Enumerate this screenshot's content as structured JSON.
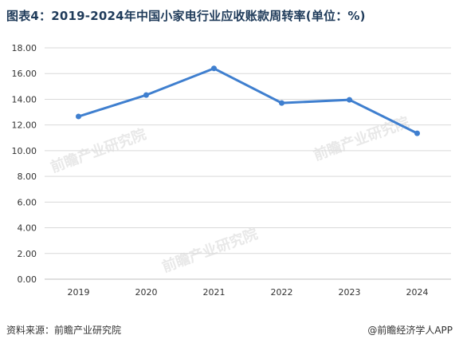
{
  "title": "图表4：2019-2024年中国小家电行业应收账款周转率(单位：%)",
  "source": "资料来源：前瞻产业研究院",
  "brand": "@前瞻经济学人APP",
  "watermark": "前瞻产业研究院",
  "colors": {
    "line": "#3f7fcf",
    "grid": "#d9d9d9",
    "axis": "#bfbfbf",
    "title": "#1f3b5a"
  },
  "chart_data": {
    "type": "line",
    "categories": [
      "2019",
      "2020",
      "2021",
      "2022",
      "2023",
      "2024"
    ],
    "series": [
      {
        "values": [
          12.66,
          14.33,
          16.4,
          13.71,
          13.96,
          11.35
        ]
      }
    ],
    "ylim": [
      0,
      18
    ],
    "yticks": [
      "0.00",
      "2.00",
      "4.00",
      "6.00",
      "8.00",
      "10.00",
      "12.00",
      "14.00",
      "16.00",
      "18.00"
    ],
    "grid": true,
    "legend": "none"
  }
}
